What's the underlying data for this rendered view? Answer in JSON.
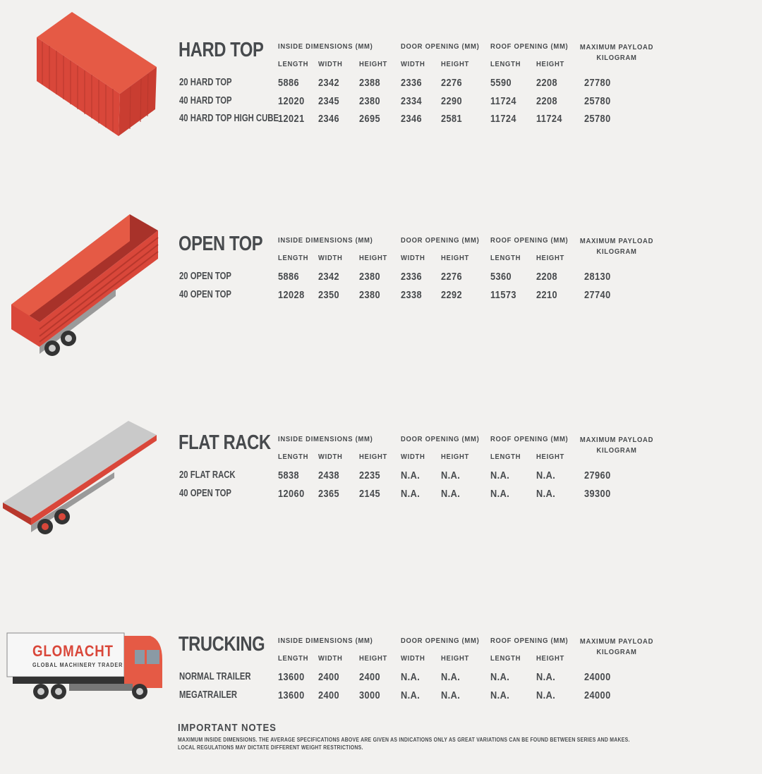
{
  "colors": {
    "text": "#474a4d",
    "container_red": "#d9473a",
    "background": "#f2f1ef"
  },
  "headers": {
    "inside": "INSIDE DIMENSIONS (MM)",
    "door": "DOOR OPENING (MM)",
    "roof": "ROOF OPENING (MM)",
    "payload_line1": "MAXIMUM PAYLOAD",
    "payload_line2": "KILOGRAM",
    "sub": [
      "LENGTH",
      "WIDTH",
      "HEIGHT",
      "WIDTH",
      "HEIGHT",
      "LENGTH",
      "HEIGHT"
    ]
  },
  "sections": [
    {
      "title": "HARD TOP",
      "icon": "shipping-container-icon",
      "rows": [
        [
          "20 HARD TOP",
          "5886",
          "2342",
          "2388",
          "2336",
          "2276",
          "5590",
          "2208",
          "27780"
        ],
        [
          "40 HARD TOP",
          "12020",
          "2345",
          "2380",
          "2334",
          "2290",
          "11724",
          "2208",
          "25780"
        ],
        [
          "40 HARD TOP HIGH CUBE",
          "12021",
          "2346",
          "2695",
          "2346",
          "2581",
          "11724",
          "11724",
          "25780"
        ]
      ]
    },
    {
      "title": "OPEN TOP",
      "icon": "open-top-trailer-icon",
      "rows": [
        [
          "20 OPEN TOP",
          "5886",
          "2342",
          "2380",
          "2336",
          "2276",
          "5360",
          "2208",
          "28130"
        ],
        [
          "40 OPEN TOP",
          "12028",
          "2350",
          "2380",
          "2338",
          "2292",
          "11573",
          "2210",
          "27740"
        ]
      ]
    },
    {
      "title": "FLAT RACK",
      "icon": "flat-rack-trailer-icon",
      "rows": [
        [
          "20 FLAT RACK",
          "5838",
          "2438",
          "2235",
          "N.A.",
          "N.A.",
          "N.A.",
          "N.A.",
          "27960"
        ],
        [
          "40 OPEN TOP",
          "12060",
          "2365",
          "2145",
          "N.A.",
          "N.A.",
          "N.A.",
          "N.A.",
          "39300"
        ]
      ]
    },
    {
      "title": "TRUCKING",
      "icon": "truck-icon",
      "rows": [
        [
          "NORMAL TRAILER",
          "13600",
          "2400",
          "2400",
          "N.A.",
          "N.A.",
          "N.A.",
          "N.A.",
          "24000"
        ],
        [
          "MEGATRAILER",
          "13600",
          "2400",
          "3000",
          "N.A.",
          "N.A.",
          "N.A.",
          "N.A.",
          "24000"
        ]
      ]
    }
  ],
  "truck_logo": {
    "brand": "GLOMACHT",
    "tagline": "GLOBAL MACHINERY TRADER"
  },
  "notes": {
    "title": "IMPORTANT NOTES",
    "line1": "MAXIMUM INSIDE DIMENSIONS. THE AVERAGE SPECIFICATIONS ABOVE ARE GIVEN AS INDICATIONS ONLY AS GREAT VARIATIONS CAN BE FOUND BETWEEN SERIES AND MAKES.",
    "line2": "LOCAL REGULATIONS MAY DICTATE DIFFERENT WEIGHT RESTRICTIONS."
  }
}
